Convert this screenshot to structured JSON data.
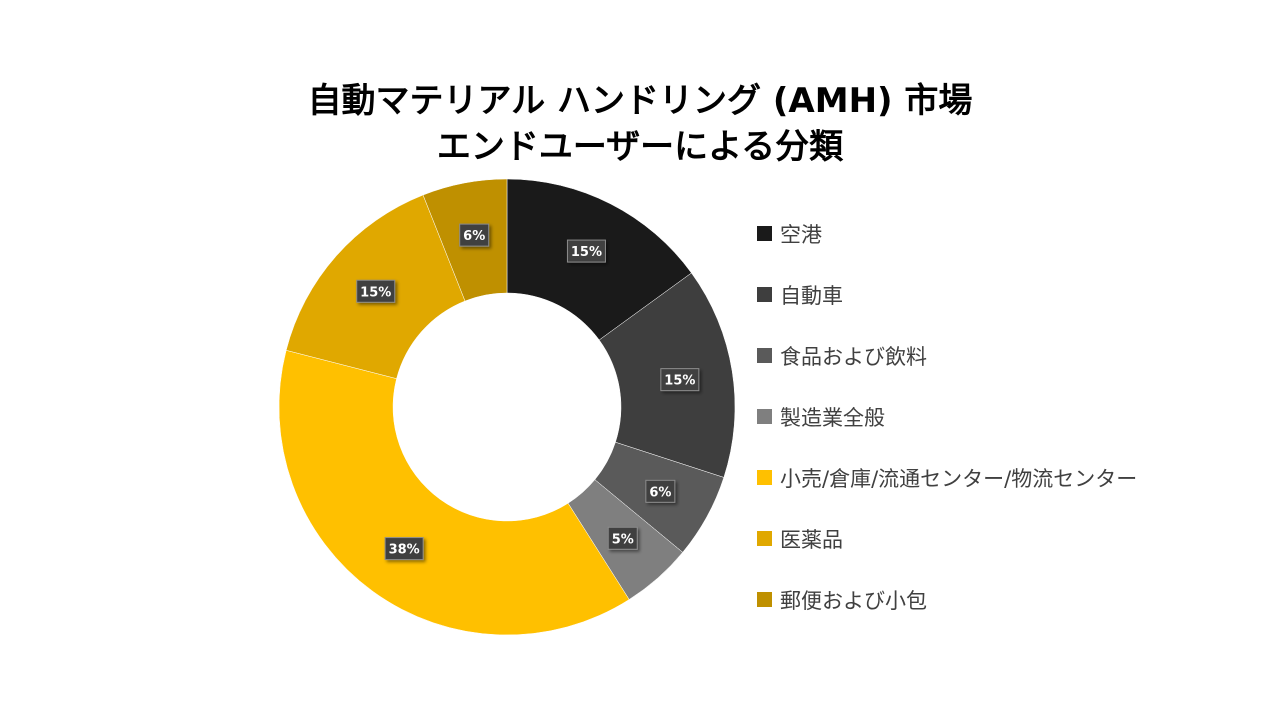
{
  "chart_data": {
    "type": "pie",
    "variant": "donut",
    "title_lines": [
      "自動マテリアル ハンドリング (AMH) 市場",
      "エンドユーザーによる分類"
    ],
    "legend_position": "right",
    "slices": [
      {
        "label": "空港",
        "value": 15,
        "display": "15%",
        "color": "#1a1a1a"
      },
      {
        "label": "自動車",
        "value": 15,
        "display": "15%",
        "color": "#3e3e3e"
      },
      {
        "label": "食品および飲料",
        "value": 6,
        "display": "6%",
        "color": "#5a5a5a"
      },
      {
        "label": "製造業全般",
        "value": 5,
        "display": "5%",
        "color": "#7f7f7f"
      },
      {
        "label": "小売/倉庫/流通センター/物流センター",
        "value": 38,
        "display": "38%",
        "color": "#ffc000"
      },
      {
        "label": "医薬品",
        "value": 15,
        "display": "15%",
        "color": "#e0a800"
      },
      {
        "label": "郵便および小包",
        "value": 6,
        "display": "6%",
        "color": "#bf9000"
      }
    ]
  }
}
